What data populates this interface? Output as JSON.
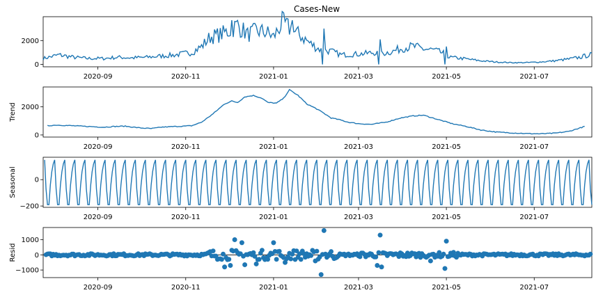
{
  "chart_data": [
    {
      "type": "line",
      "panel": "observed",
      "title": "Cases-New",
      "ylabel": "",
      "ylim": [
        -200,
        4000
      ],
      "yticks": [
        0,
        2000
      ],
      "ytick_labels": [
        "0",
        "2000"
      ],
      "color": "#1f77b4",
      "x": [
        "2020-07-25",
        "2020-08-05",
        "2020-08-15",
        "2020-08-25",
        "2020-09-05",
        "2020-09-15",
        "2020-09-25",
        "2020-10-05",
        "2020-10-15",
        "2020-10-25",
        "2020-11-05",
        "2020-11-12",
        "2020-11-18",
        "2020-11-25",
        "2020-12-01",
        "2020-12-07",
        "2020-12-14",
        "2020-12-20",
        "2020-12-27",
        "2021-01-01",
        "2021-01-07",
        "2021-01-14",
        "2021-01-20",
        "2021-01-27",
        "2021-02-03",
        "2021-02-10",
        "2021-02-17",
        "2021-02-25",
        "2021-03-05",
        "2021-03-12",
        "2021-03-17",
        "2021-03-25",
        "2021-04-01",
        "2021-04-08",
        "2021-04-15",
        "2021-04-22",
        "2021-04-30",
        "2021-05-03",
        "2021-05-12",
        "2021-05-25",
        "2021-06-05",
        "2021-06-15",
        "2021-06-25",
        "2021-07-05",
        "2021-07-15",
        "2021-07-25",
        "2021-08-02",
        "2021-08-08"
      ],
      "values": [
        500,
        800,
        600,
        500,
        500,
        600,
        550,
        600,
        700,
        800,
        1000,
        1500,
        2300,
        2500,
        2800,
        3300,
        2500,
        2800,
        2700,
        2300,
        3500,
        2800,
        2400,
        1700,
        1200,
        1100,
        800,
        850,
        900,
        1000,
        900,
        1100,
        1400,
        1500,
        1300,
        1200,
        900,
        600,
        500,
        300,
        200,
        150,
        150,
        200,
        300,
        450,
        600,
        800
      ],
      "spikes": [
        {
          "x": "2020-12-03",
          "y": 3700
        },
        {
          "x": "2021-01-09",
          "y": 3600
        },
        {
          "x": "2021-01-14",
          "y": 3700
        },
        {
          "x": "2021-02-05",
          "y": 3000
        },
        {
          "x": "2021-02-04",
          "y": 0
        },
        {
          "x": "2021-03-16",
          "y": 2100
        },
        {
          "x": "2021-03-15",
          "y": 0
        },
        {
          "x": "2021-05-01",
          "y": 1500
        },
        {
          "x": "2021-04-30",
          "y": 0
        }
      ],
      "xtick_labels": [
        "2020-09",
        "2020-11",
        "2021-01",
        "2021-03",
        "2021-05",
        "2021-07"
      ]
    },
    {
      "type": "line",
      "panel": "trend",
      "title": "",
      "ylabel": "Trend",
      "ylim": [
        -150,
        3400
      ],
      "yticks": [
        0,
        2000
      ],
      "ytick_labels": [
        "0",
        "2000"
      ],
      "color": "#1f77b4",
      "x": [
        "2020-07-28",
        "2020-08-03",
        "2020-08-15",
        "2020-08-25",
        "2020-09-05",
        "2020-09-12",
        "2020-09-20",
        "2020-09-30",
        "2020-10-08",
        "2020-10-15",
        "2020-10-25",
        "2020-11-05",
        "2020-11-12",
        "2020-11-20",
        "2020-11-28",
        "2020-12-03",
        "2020-12-07",
        "2020-12-12",
        "2020-12-18",
        "2020-12-24",
        "2020-12-28",
        "2021-01-03",
        "2021-01-08",
        "2021-01-12",
        "2021-01-18",
        "2021-01-24",
        "2021-01-30",
        "2021-02-04",
        "2021-02-10",
        "2021-02-15",
        "2021-02-22",
        "2021-03-01",
        "2021-03-10",
        "2021-03-20",
        "2021-03-30",
        "2021-04-08",
        "2021-04-15",
        "2021-04-25",
        "2021-05-05",
        "2021-05-15",
        "2021-05-25",
        "2021-06-05",
        "2021-06-15",
        "2021-06-25",
        "2021-07-05",
        "2021-07-15",
        "2021-07-25",
        "2021-08-05"
      ],
      "values": [
        650,
        700,
        650,
        600,
        550,
        600,
        620,
        500,
        450,
        550,
        600,
        650,
        900,
        1500,
        2200,
        2400,
        2300,
        2700,
        2800,
        2600,
        2300,
        2250,
        2600,
        3200,
        2800,
        2200,
        1900,
        1600,
        1200,
        1100,
        900,
        800,
        750,
        900,
        1200,
        1350,
        1400,
        1100,
        800,
        600,
        350,
        200,
        150,
        100,
        80,
        120,
        250,
        600
      ],
      "xtick_labels": [
        "2020-09",
        "2020-11",
        "2021-01",
        "2021-03",
        "2021-05",
        "2021-07"
      ]
    },
    {
      "type": "line",
      "panel": "seasonal",
      "title": "",
      "ylabel": "Seasonal",
      "ylim": [
        -210,
        170
      ],
      "yticks": [
        0,
        -200
      ],
      "ytick_labels": [
        "0",
        "−200"
      ],
      "color": "#1f77b4",
      "period_days": 7,
      "pattern": [
        150,
        -70,
        -190,
        -190,
        -40,
        60,
        120
      ],
      "start": "2020-07-26",
      "end": "2021-08-10",
      "xtick_labels": [
        "2020-09",
        "2020-11",
        "2021-01",
        "2021-03",
        "2021-05",
        "2021-07"
      ]
    },
    {
      "type": "scatter",
      "panel": "resid",
      "title": "",
      "ylabel": "Resid",
      "ylim": [
        -1500,
        1800
      ],
      "yticks": [
        1000,
        0,
        -1000
      ],
      "ytick_labels": [
        "1000",
        "0",
        "−1000"
      ],
      "color": "#1f77b4",
      "baseline": 0,
      "outliers": [
        {
          "x": "2020-11-28",
          "y": -800
        },
        {
          "x": "2020-12-05",
          "y": 1000
        },
        {
          "x": "2020-12-02",
          "y": -700
        },
        {
          "x": "2020-12-10",
          "y": 800
        },
        {
          "x": "2020-12-12",
          "y": -650
        },
        {
          "x": "2020-12-20",
          "y": -600
        },
        {
          "x": "2021-01-01",
          "y": 800
        },
        {
          "x": "2021-01-09",
          "y": -500
        },
        {
          "x": "2021-02-05",
          "y": 1600
        },
        {
          "x": "2021-02-03",
          "y": -1300
        },
        {
          "x": "2021-01-30",
          "y": -400
        },
        {
          "x": "2021-03-16",
          "y": 1300
        },
        {
          "x": "2021-03-14",
          "y": -700
        },
        {
          "x": "2021-03-17",
          "y": -800
        },
        {
          "x": "2021-04-20",
          "y": -400
        },
        {
          "x": "2021-05-01",
          "y": 900
        },
        {
          "x": "2021-04-30",
          "y": -900
        }
      ],
      "xtick_labels": [
        "2020-09",
        "2020-11",
        "2021-01",
        "2021-03",
        "2021-05",
        "2021-07"
      ]
    }
  ]
}
